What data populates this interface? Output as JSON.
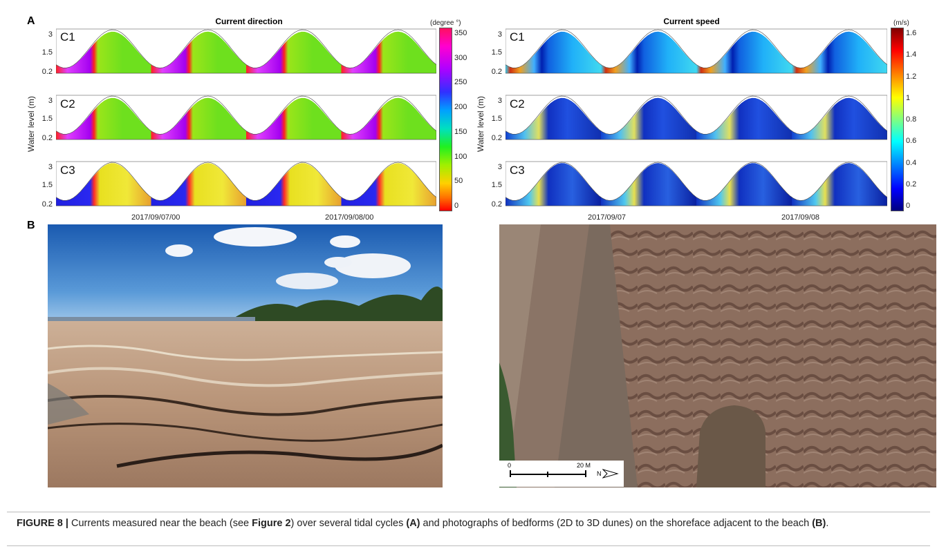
{
  "figure": {
    "panel_a_letter": "A",
    "panel_b_letter": "B"
  },
  "left_plot": {
    "title": "Current direction",
    "unit": "(degree °)",
    "ylabel": "Water level (m)",
    "yticks": [
      "3",
      "1.5",
      "0.2"
    ],
    "rows": [
      "C1",
      "C2",
      "C3"
    ],
    "dates": [
      "2017/09/07/00",
      "2017/09/08/00"
    ],
    "colorbar_ticks": [
      "350",
      "300",
      "250",
      "200",
      "150",
      "100",
      "50",
      "0"
    ],
    "colormap": "hsv"
  },
  "right_plot": {
    "title": "Current speed",
    "unit": "(m/s)",
    "ylabel": "Water level (m)",
    "yticks": [
      "3",
      "1.5",
      "0.2"
    ],
    "rows": [
      "C1",
      "C2",
      "C3"
    ],
    "dates": [
      "2017/09/07",
      "2017/09/08"
    ],
    "colorbar_ticks": [
      "1.6",
      "1.4",
      "1.2",
      "1",
      "0.8",
      "0.6",
      "0.4",
      "0.2",
      "0"
    ],
    "colormap": "jet"
  },
  "photo_right": {
    "scale_start": "0",
    "scale_end": "20 M",
    "north_label": "N"
  },
  "caption": {
    "label": "FIGURE 8 |",
    "text_1": " Currents measured near the beach (see ",
    "fig_ref": "Figure 2",
    "text_2": ") over several tidal cycles ",
    "ref_a": "(A)",
    "text_3": " and photographs of bedforms (2D to 3D dunes) on the shoreface adjacent to the beach ",
    "ref_b": "(B)",
    "text_4": "."
  }
}
